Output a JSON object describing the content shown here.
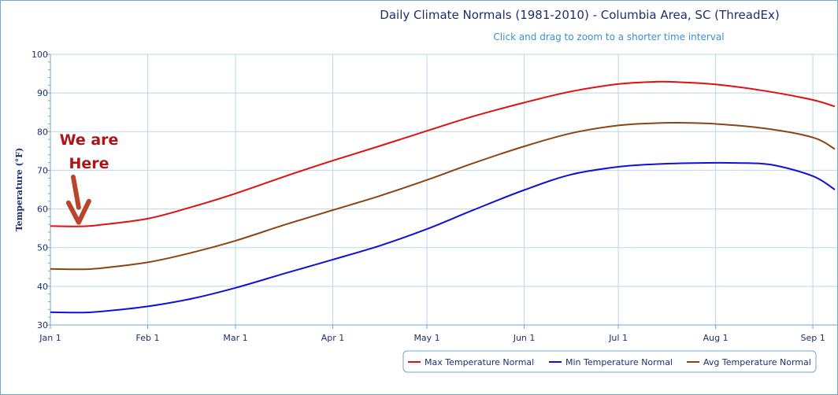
{
  "chart_data": {
    "type": "line",
    "title": "Daily Climate Normals (1981-2010) - Columbia Area, SC (ThreadEx)",
    "subtitle": "Click and drag to zoom to a shorter time interval",
    "ylabel": "Temperature (°F)",
    "xlabel": "",
    "ylim": [
      30,
      100
    ],
    "yticks": [
      30,
      40,
      50,
      60,
      70,
      80,
      90,
      100
    ],
    "xlim_day": [
      0,
      250
    ],
    "xticks": [
      {
        "label": "Jan 1",
        "day": 0
      },
      {
        "label": "Feb 1",
        "day": 31
      },
      {
        "label": "Mar 1",
        "day": 59
      },
      {
        "label": "Apr 1",
        "day": 90
      },
      {
        "label": "May 1",
        "day": 120
      },
      {
        "label": "Jun 1",
        "day": 151
      },
      {
        "label": "Jul 1",
        "day": 181
      },
      {
        "label": "Aug 1",
        "day": 212
      },
      {
        "label": "Sep 1",
        "day": 243
      }
    ],
    "grid": true,
    "legend_position": "bottom-right",
    "series": [
      {
        "name": "Max Temperature Normal",
        "color": "#e01010",
        "days": [
          0,
          9,
          15,
          31,
          45,
          59,
          75,
          90,
          105,
          120,
          135,
          151,
          166,
          181,
          193,
          200,
          212,
          228,
          243,
          250
        ],
        "values": [
          55.6,
          55.5,
          55.8,
          57.5,
          60.5,
          64.0,
          68.5,
          72.5,
          76.3,
          80.2,
          84.0,
          87.5,
          90.4,
          92.3,
          92.9,
          92.8,
          92.2,
          90.5,
          88.2,
          86.5
        ]
      },
      {
        "name": "Min Temperature Normal",
        "color": "#1010d8",
        "days": [
          0,
          9,
          15,
          31,
          45,
          59,
          75,
          90,
          105,
          120,
          135,
          151,
          166,
          181,
          193,
          207,
          219,
          230,
          243,
          250
        ],
        "values": [
          33.3,
          33.2,
          33.4,
          34.8,
          36.8,
          39.6,
          43.4,
          46.9,
          50.5,
          54.8,
          59.8,
          64.9,
          68.9,
          70.9,
          71.6,
          71.9,
          71.9,
          71.4,
          68.5,
          65.0
        ]
      },
      {
        "name": "Avg Temperature Normal",
        "color": "#8b4513",
        "days": [
          0,
          9,
          15,
          31,
          45,
          59,
          75,
          90,
          105,
          120,
          135,
          151,
          166,
          181,
          193,
          200,
          212,
          228,
          243,
          250
        ],
        "values": [
          44.5,
          44.4,
          44.6,
          46.2,
          48.7,
          51.8,
          56.0,
          59.7,
          63.4,
          67.5,
          71.9,
          76.2,
          79.6,
          81.6,
          82.2,
          82.3,
          82.0,
          80.8,
          78.5,
          75.5
        ]
      }
    ],
    "annotations": [
      {
        "text_line1": "We are",
        "text_line2": "Here",
        "color": "#b01414",
        "day": 9,
        "value": 55.5
      }
    ]
  }
}
